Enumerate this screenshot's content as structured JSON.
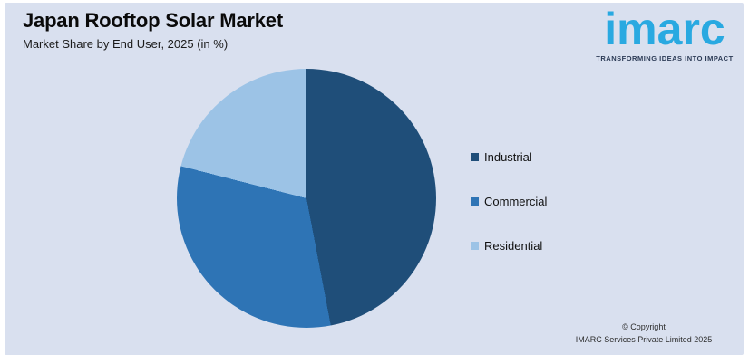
{
  "page": {
    "frame_color": "#FFFFFF",
    "panel_color": "#D9E0EF"
  },
  "header": {
    "title": "Japan Rooftop Solar Market",
    "subtitle": "Market Share by End User, 2025 (in %)"
  },
  "brand": {
    "logo_text": "imarc",
    "tagline": "TRANSFORMING IDEAS INTO IMPACT",
    "logo_color": "#29A9E1",
    "tagline_color": "#2B3A55"
  },
  "chart_data": {
    "type": "pie",
    "title": "Japan Rooftop Solar Market",
    "subtitle": "Market Share by End User, 2025 (in %)",
    "categories": [
      "Industrial",
      "Commercial",
      "Residential"
    ],
    "values": [
      47,
      32,
      21
    ],
    "colors": [
      "#1F4E79",
      "#2E74B5",
      "#9CC3E6"
    ],
    "start_angle_deg": 0,
    "direction": "clockwise",
    "legend_position": "right",
    "data_labels": false,
    "note": "values estimated from slice angles; no numeric labels shown in image"
  },
  "footer": {
    "line1": "© Copyright",
    "line2": "IMARC Services Private Limited 2025"
  }
}
